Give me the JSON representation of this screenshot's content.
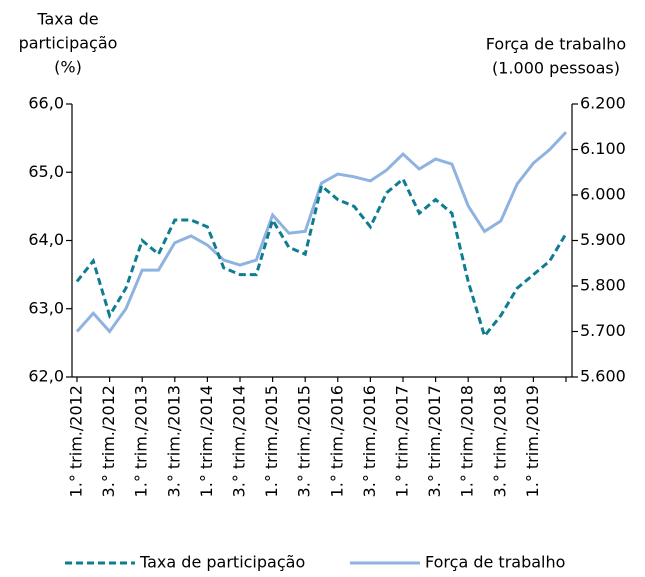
{
  "chart_data": {
    "type": "line",
    "y_label": [
      "Taxa de",
      "participação",
      "(%)"
    ],
    "y2_label": [
      "Força de trabalho",
      "(1.000 pessoas)"
    ],
    "categories": [
      "1.° trim./2012",
      null,
      "3.° trim./2012",
      null,
      "1.° trim./2013",
      null,
      "3.° trim./2013",
      null,
      "1.° trim./2014",
      null,
      "3.° trim./2014",
      null,
      "1.° trim./2015",
      null,
      "3.° trim./2015",
      null,
      "1.° trim./2016",
      null,
      "3.° trim./2016",
      null,
      "1.° trim./2017",
      null,
      "3.° trim./2017",
      null,
      "1.° trim./2018",
      null,
      "3.° trim./2018",
      null,
      "1.° trim./2019",
      null,
      null
    ],
    "series": [
      {
        "name": "Taxa de participação",
        "color": "#0e7c91",
        "dashed": true,
        "axis": "y",
        "values": [
          63.4,
          63.7,
          62.9,
          63.3,
          64.0,
          63.8,
          64.3,
          64.3,
          64.2,
          63.6,
          63.5,
          63.5,
          64.3,
          63.9,
          63.8,
          64.8,
          64.6,
          64.5,
          64.2,
          64.7,
          64.9,
          64.4,
          64.6,
          64.4,
          63.4,
          62.6,
          62.9,
          63.3,
          63.5,
          63.7,
          64.1
        ]
      },
      {
        "name": "Força de trabalho",
        "color": "#8fb3e0",
        "dashed": false,
        "axis": "y2",
        "values": [
          5700,
          5740,
          5700,
          5750,
          5835,
          5835,
          5895,
          5910,
          5890,
          5857,
          5846,
          5857,
          5956,
          5916,
          5920,
          6026,
          6046,
          6040,
          6031,
          6055,
          6090,
          6057,
          6079,
          6068,
          5976,
          5920,
          5943,
          6024,
          6070,
          6100,
          6138
        ]
      }
    ],
    "ylim": [
      62,
      66
    ],
    "yticks": [
      {
        "value": 62,
        "label": "62,0"
      },
      {
        "value": 63,
        "label": "63,0"
      },
      {
        "value": 64,
        "label": "64,0"
      },
      {
        "value": 65,
        "label": "65,0"
      },
      {
        "value": 66,
        "label": "66,0"
      }
    ],
    "y2lim": [
      5600,
      6200
    ],
    "y2ticks": [
      {
        "value": 5600,
        "label": "5.600"
      },
      {
        "value": 5700,
        "label": "5.700"
      },
      {
        "value": 5800,
        "label": "5.800"
      },
      {
        "value": 5900,
        "label": "5.900"
      },
      {
        "value": 6000,
        "label": "6.000"
      },
      {
        "value": 6100,
        "label": "6.100"
      },
      {
        "value": 6200,
        "label": "6.200"
      }
    ],
    "legend": "bottom"
  }
}
